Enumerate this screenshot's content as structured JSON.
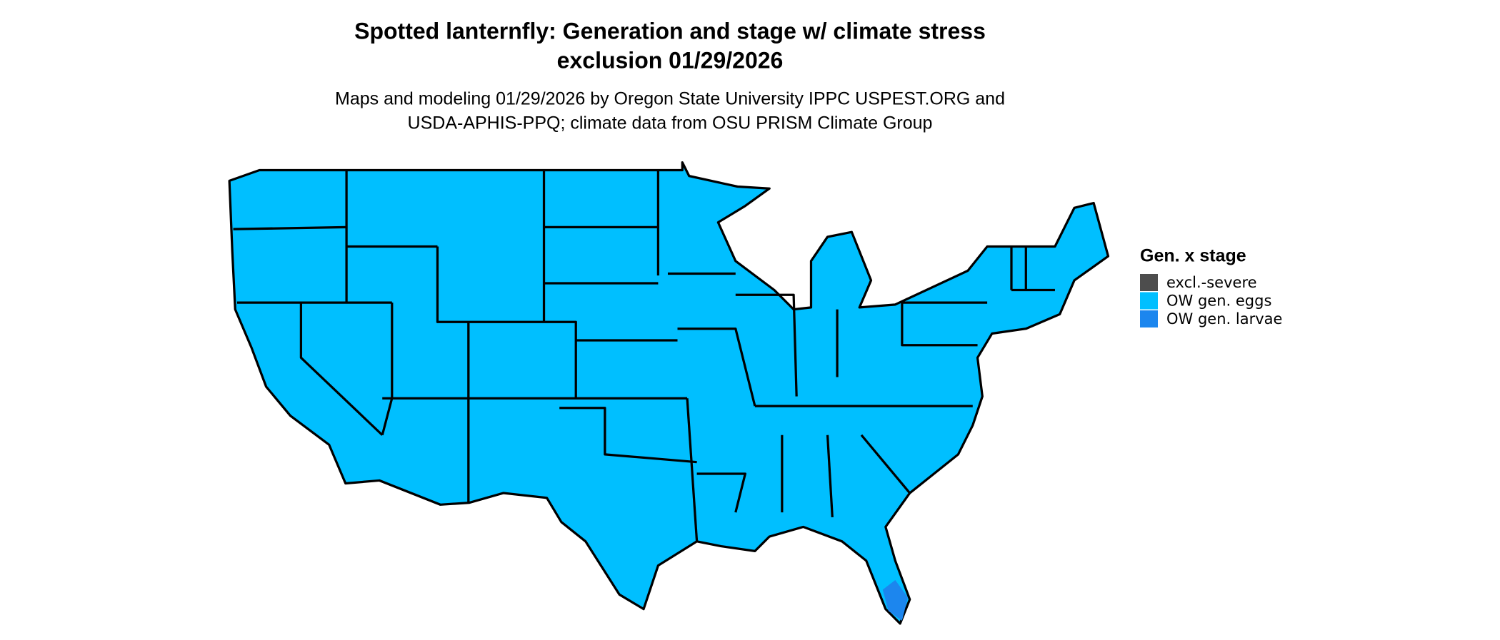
{
  "header": {
    "title": [
      "Spotted lanternfly: Generation and stage w/ climate stress",
      "exclusion 01/29/2026"
    ],
    "subtitle": [
      "Maps and modeling 01/29/2026 by Oregon State University IPPC USPEST.ORG and",
      "USDA-APHIS-PPQ; climate data from OSU PRISM Climate Group"
    ]
  },
  "legend": {
    "title": "Gen. x stage",
    "items": [
      {
        "label": "excl.-severe",
        "color": "#4d4d4d"
      },
      {
        "label": "OW gen. eggs",
        "color": "#00bfff"
      },
      {
        "label": "OW gen. larvae",
        "color": "#1c86ee"
      }
    ]
  }
}
